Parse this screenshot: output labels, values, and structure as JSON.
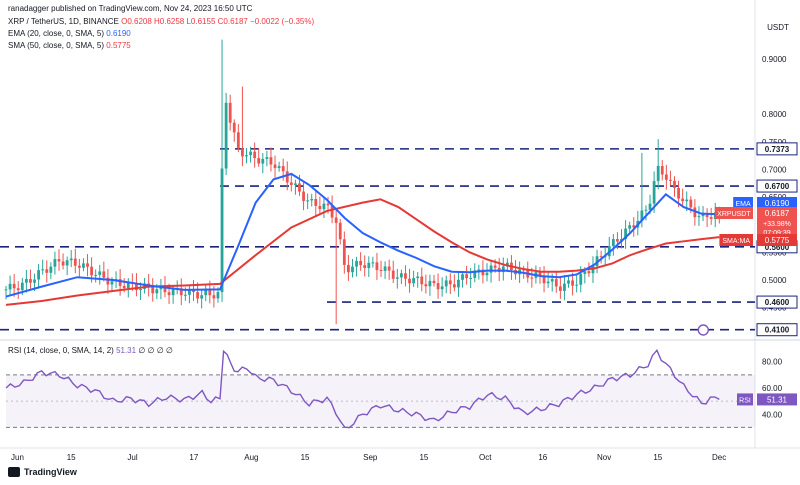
{
  "credit": "ranadagger published on TradingView.com, Nov 24, 2023 16:50 UTC",
  "header": {
    "symbol": "XRP / TetherUS, 1D, BINANCE",
    "ohlc": "O0.6208  H0.6258  L0.6155  C0.6187  −0.0022 (−0.35%)",
    "ema_label": "EMA (20, close, 0, SMA, 5)",
    "ema_value": "0.6190",
    "sma_label": "SMA (50, close, 0, SMA, 5)",
    "sma_value": "0.5775",
    "rsi_label": "RSI (14, close, 0, SMA, 14, 2)",
    "rsi_value": "51.31",
    "rsi_extra": "∅  ∅  ∅  ∅"
  },
  "axis_currency": "USDT",
  "brand": "TradingView",
  "colors": {
    "up": "#26a69a",
    "down": "#ef5350",
    "ema": "#2962ff",
    "sma": "#e53935",
    "rsi": "#7e57c2",
    "level": "#1a237e"
  },
  "chart_data": [
    {
      "type": "candlestick",
      "title": "XRP / TetherUS, 1D, BINANCE",
      "ylim": [
        0.395,
        0.985
      ],
      "y_ticks": [
        "0.9000",
        "0.8000",
        "0.7500",
        "0.7000",
        "0.6500",
        "0.5500",
        "0.5000",
        "0.4500"
      ],
      "x_ticks": [
        "Jun",
        "15",
        "Jul",
        "17",
        "Aug",
        "15",
        "Sep",
        "15",
        "Oct",
        "16",
        "Nov",
        "15",
        "Dec"
      ],
      "horizontal_levels": [
        {
          "label": "0.7373",
          "value": 0.7373
        },
        {
          "label": "0.6700",
          "value": 0.67
        },
        {
          "label": "0.5600",
          "value": 0.56
        },
        {
          "label": "0.4600",
          "value": 0.46
        },
        {
          "label": "0.4100",
          "value": 0.41
        }
      ],
      "price_tags": [
        {
          "label": "EMA",
          "text": "0.6190",
          "value": 0.619,
          "color": "#2962ff"
        },
        {
          "label": "XRPUSDT",
          "text": "0.6187",
          "sub": [
            "+33.98%",
            "07:09:39"
          ],
          "value": 0.6187,
          "color": "#ef5350"
        },
        {
          "label": "SMA:MA",
          "text": "0.5775",
          "value": 0.5775,
          "color": "#e53935"
        }
      ],
      "close_path": [
        [
          0,
          0.483
        ],
        [
          10,
          0.492
        ],
        [
          20,
          0.515
        ],
        [
          30,
          0.535
        ],
        [
          40,
          0.53
        ],
        [
          50,
          0.512
        ],
        [
          60,
          0.495
        ],
        [
          70,
          0.49
        ],
        [
          80,
          0.485
        ],
        [
          90,
          0.48
        ],
        [
          100,
          0.478
        ],
        [
          110,
          0.473
        ],
        [
          120,
          0.475
        ],
        [
          122,
          0.86
        ],
        [
          124,
          0.812
        ],
        [
          130,
          0.735
        ],
        [
          140,
          0.72
        ],
        [
          150,
          0.712
        ],
        [
          160,
          0.675
        ],
        [
          170,
          0.64
        ],
        [
          180,
          0.632
        ],
        [
          185,
          0.61
        ],
        [
          190,
          0.52
        ],
        [
          200,
          0.53
        ],
        [
          210,
          0.522
        ],
        [
          220,
          0.505
        ],
        [
          230,
          0.5
        ],
        [
          240,
          0.49
        ],
        [
          250,
          0.492
        ],
        [
          260,
          0.51
        ],
        [
          270,
          0.517
        ],
        [
          280,
          0.525
        ],
        [
          290,
          0.512
        ],
        [
          300,
          0.505
        ],
        [
          310,
          0.487
        ],
        [
          320,
          0.497
        ],
        [
          330,
          0.53
        ],
        [
          340,
          0.565
        ],
        [
          350,
          0.595
        ],
        [
          360,
          0.63
        ],
        [
          365,
          0.7
        ],
        [
          370,
          0.69
        ],
        [
          375,
          0.66
        ],
        [
          380,
          0.645
        ],
        [
          385,
          0.625
        ],
        [
          390,
          0.612
        ],
        [
          395,
          0.618
        ],
        [
          400,
          0.619
        ]
      ],
      "ema20": [
        [
          0,
          0.47
        ],
        [
          20,
          0.488
        ],
        [
          40,
          0.505
        ],
        [
          60,
          0.5
        ],
        [
          80,
          0.49
        ],
        [
          100,
          0.482
        ],
        [
          120,
          0.483
        ],
        [
          130,
          0.56
        ],
        [
          140,
          0.64
        ],
        [
          150,
          0.682
        ],
        [
          160,
          0.692
        ],
        [
          170,
          0.672
        ],
        [
          180,
          0.645
        ],
        [
          190,
          0.612
        ],
        [
          200,
          0.585
        ],
        [
          210,
          0.568
        ],
        [
          220,
          0.553
        ],
        [
          230,
          0.54
        ],
        [
          240,
          0.525
        ],
        [
          250,
          0.515
        ],
        [
          260,
          0.514
        ],
        [
          270,
          0.517
        ],
        [
          280,
          0.517
        ],
        [
          290,
          0.513
        ],
        [
          300,
          0.507
        ],
        [
          310,
          0.505
        ],
        [
          320,
          0.51
        ],
        [
          330,
          0.528
        ],
        [
          340,
          0.555
        ],
        [
          350,
          0.585
        ],
        [
          360,
          0.62
        ],
        [
          370,
          0.655
        ],
        [
          380,
          0.632
        ],
        [
          390,
          0.62
        ],
        [
          400,
          0.619
        ]
      ],
      "sma50": [
        [
          0,
          0.455
        ],
        [
          20,
          0.462
        ],
        [
          40,
          0.472
        ],
        [
          60,
          0.48
        ],
        [
          80,
          0.488
        ],
        [
          100,
          0.49
        ],
        [
          120,
          0.493
        ],
        [
          140,
          0.545
        ],
        [
          160,
          0.595
        ],
        [
          180,
          0.625
        ],
        [
          200,
          0.64
        ],
        [
          210,
          0.646
        ],
        [
          220,
          0.632
        ],
        [
          230,
          0.61
        ],
        [
          240,
          0.588
        ],
        [
          250,
          0.568
        ],
        [
          260,
          0.55
        ],
        [
          270,
          0.537
        ],
        [
          280,
          0.527
        ],
        [
          290,
          0.52
        ],
        [
          300,
          0.515
        ],
        [
          310,
          0.515
        ],
        [
          320,
          0.517
        ],
        [
          330,
          0.521
        ],
        [
          340,
          0.53
        ],
        [
          350,
          0.545
        ],
        [
          360,
          0.556
        ],
        [
          370,
          0.566
        ],
        [
          380,
          0.57
        ],
        [
          390,
          0.574
        ],
        [
          400,
          0.5775
        ]
      ]
    },
    {
      "type": "line",
      "title": "RSI (14, close, 0, SMA, 14, 2)",
      "ylim": [
        25,
        95
      ],
      "y_ticks": [
        "80.00",
        "60.00",
        "40.00"
      ],
      "bands": [
        30,
        70
      ],
      "series": [
        {
          "name": "RSI",
          "values": [
            [
              0,
              60
            ],
            [
              10,
              64
            ],
            [
              20,
              72
            ],
            [
              30,
              70
            ],
            [
              40,
              62
            ],
            [
              50,
              58
            ],
            [
              60,
              50
            ],
            [
              70,
              52
            ],
            [
              80,
              48
            ],
            [
              90,
              53
            ],
            [
              100,
              51
            ],
            [
              110,
              56
            ],
            [
              115,
              50
            ],
            [
              120,
              52
            ],
            [
              122,
              90
            ],
            [
              126,
              78
            ],
            [
              130,
              72
            ],
            [
              135,
              76
            ],
            [
              140,
              68
            ],
            [
              150,
              66
            ],
            [
              160,
              58
            ],
            [
              170,
              48
            ],
            [
              180,
              52
            ],
            [
              185,
              42
            ],
            [
              190,
              28
            ],
            [
              200,
              40
            ],
            [
              210,
              47
            ],
            [
              220,
              43
            ],
            [
              230,
              40
            ],
            [
              240,
              35
            ],
            [
              250,
              42
            ],
            [
              260,
              46
            ],
            [
              270,
              55
            ],
            [
              280,
              52
            ],
            [
              290,
              41
            ],
            [
              300,
              44
            ],
            [
              310,
              48
            ],
            [
              320,
              55
            ],
            [
              330,
              60
            ],
            [
              340,
              67
            ],
            [
              350,
              70
            ],
            [
              360,
              78
            ],
            [
              365,
              88
            ],
            [
              370,
              78
            ],
            [
              375,
              70
            ],
            [
              380,
              61
            ],
            [
              385,
              55
            ],
            [
              390,
              48
            ],
            [
              395,
              52
            ],
            [
              400,
              51.31
            ]
          ]
        }
      ]
    }
  ]
}
